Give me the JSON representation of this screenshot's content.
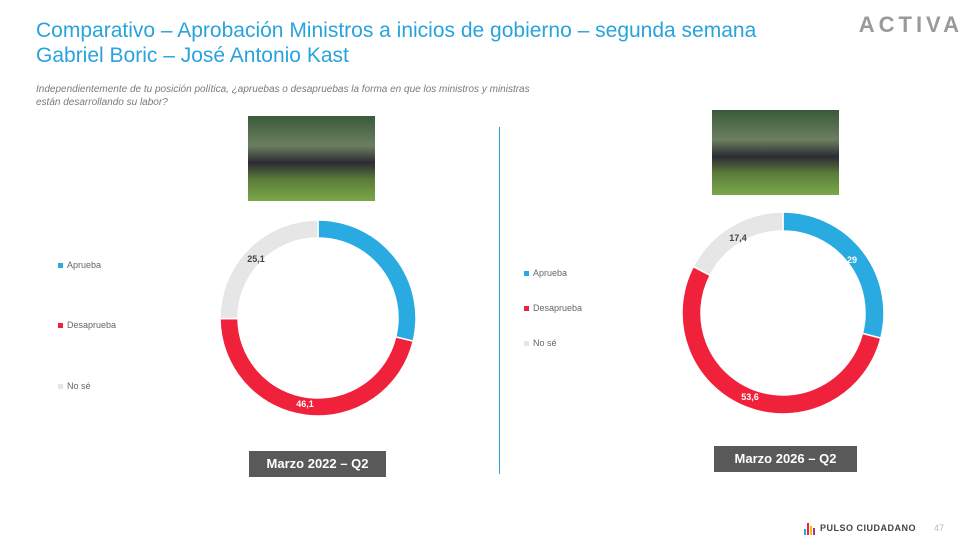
{
  "header": {
    "title_line1": "Comparativo – Aprobación Ministros a inicios de gobierno – segunda semana",
    "title_line2": "Gabriel Boric – José Antonio Kast",
    "logo": "ACTIVA"
  },
  "question": "Independientemente de tu posición política, ¿apruebas o desapruebas la forma en que los ministros y ministras están desarrollando su labor?",
  "colors": {
    "aprueba": "#29abe2",
    "desaprueba": "#f0213a",
    "nose": "#e6e6e6",
    "title": "#29a3dd"
  },
  "left": {
    "period": "Marzo 2022 – Q2",
    "legend": [
      "Aprueba",
      "Desaprueba",
      "No sé"
    ],
    "values": [
      "28,8",
      "46,1",
      "25,1"
    ]
  },
  "right": {
    "period": "Marzo 2026 – Q2",
    "legend": [
      "Aprueba",
      "Desaprueba",
      "No sé"
    ],
    "values": [
      "29",
      "53,6",
      "17,4"
    ]
  },
  "footer": {
    "brand": "PULSO CIUDADANO",
    "page": "47"
  }
}
